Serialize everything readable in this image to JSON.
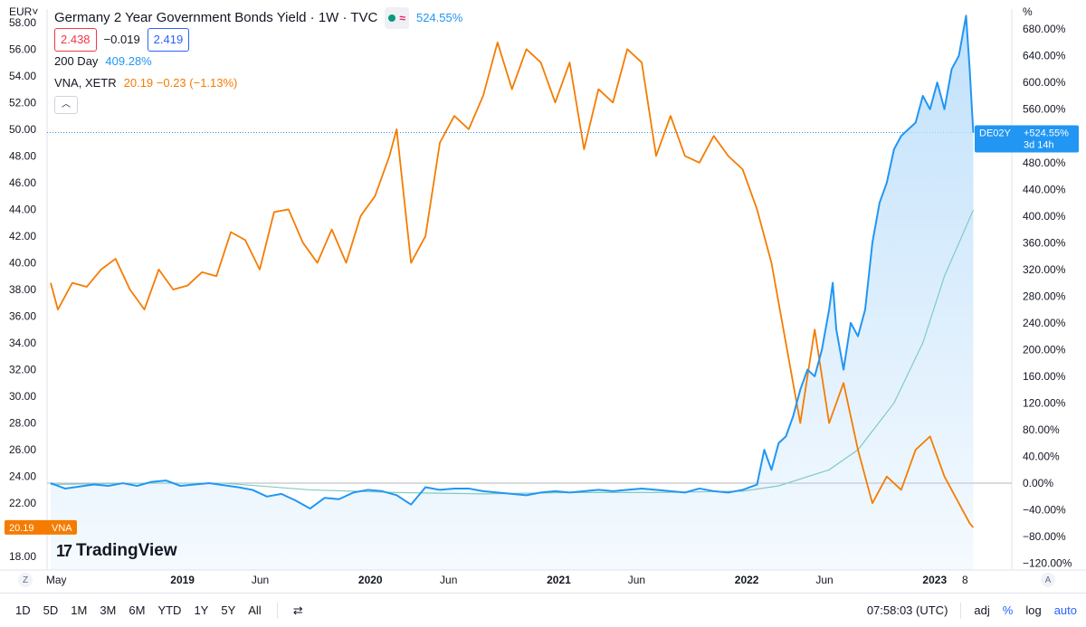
{
  "header": {
    "currency": "EUR",
    "currency_caret": "˅",
    "percent_unit": "%",
    "title": "Germany 2 Year Government Bonds Yield · 1W · TVC",
    "pill_symbol": "≈",
    "main_change": "524.55%",
    "val1": "2.438",
    "spread": "−0.019",
    "val2": "2.419",
    "ma_label": "200 Day",
    "ma_value": "409.28%",
    "cmp_name": "VNA, XETR",
    "cmp_values": "20.19  −0.23 (−1.13%)",
    "collapse_glyph": "︿"
  },
  "tags": {
    "vna_value": "20.19",
    "vna_name": "VNA",
    "de_name": "DE02Y",
    "de_change": "+524.55%",
    "de_countdown": "3d 14h"
  },
  "corners": {
    "left": "Z",
    "right": "A"
  },
  "logo": {
    "mark": "17",
    "text": "TradingView"
  },
  "bottom": {
    "ranges": [
      "1D",
      "5D",
      "1M",
      "3M",
      "6M",
      "YTD",
      "1Y",
      "5Y",
      "All"
    ],
    "compare_icon": "⇄",
    "time": "07:58:03 (UTC)",
    "adj": "adj",
    "pct": "%",
    "log": "log",
    "auto": "auto"
  },
  "colors": {
    "yield_line": "#2196f3",
    "yield_fill": "#bbdefb",
    "ma_line": "#80cbc4",
    "vna_line": "#f57c00",
    "axis_text": "#131722",
    "grid": "#f0f3fa"
  },
  "chart_data": {
    "type": "line",
    "x_ticks": [
      "May",
      "2019",
      "Jun",
      "2020",
      "Jun",
      "2021",
      "Jun",
      "2022",
      "Jun",
      "2023",
      "8"
    ],
    "x_tick_dates": [
      "2018-05-01",
      "2019-01-01",
      "2019-06-01",
      "2020-01-01",
      "2020-06-01",
      "2021-01-01",
      "2021-06-01",
      "2022-01-01",
      "2022-06-01",
      "2023-01-01",
      "2023-03-01"
    ],
    "y_left_ticks": [
      "58.00",
      "56.00",
      "54.00",
      "52.00",
      "50.00",
      "48.00",
      "46.00",
      "44.00",
      "42.00",
      "40.00",
      "38.00",
      "36.00",
      "34.00",
      "32.00",
      "30.00",
      "28.00",
      "26.00",
      "24.00",
      "22.00",
      "18.00"
    ],
    "y_left_values": [
      58,
      56,
      54,
      52,
      50,
      48,
      46,
      44,
      42,
      40,
      38,
      36,
      34,
      32,
      30,
      28,
      26,
      24,
      22,
      18
    ],
    "y_right_ticks": [
      "680.00%",
      "640.00%",
      "600.00%",
      "560.00%",
      "520.00%",
      "480.00%",
      "440.00%",
      "400.00%",
      "360.00%",
      "320.00%",
      "280.00%",
      "240.00%",
      "200.00%",
      "160.00%",
      "120.00%",
      "80.00%",
      "40.00%",
      "0.00%",
      "−40.00%",
      "−80.00%",
      "−120.00%"
    ],
    "y_right_values": [
      680,
      640,
      600,
      560,
      520,
      480,
      440,
      400,
      360,
      320,
      280,
      240,
      200,
      160,
      120,
      80,
      40,
      0,
      -40,
      -80,
      -120
    ],
    "ylim_left": [
      17,
      59
    ],
    "ylim_right": [
      -130,
      710
    ],
    "series": [
      {
        "name": "Germany 2 Year Government Bonds Yield",
        "axis": "right",
        "unit": "%",
        "x": [
          "2018-04-20",
          "2018-05-18",
          "2018-06-15",
          "2018-07-13",
          "2018-08-10",
          "2018-09-07",
          "2018-10-05",
          "2018-11-02",
          "2018-11-30",
          "2018-12-28",
          "2019-01-25",
          "2019-02-22",
          "2019-03-22",
          "2019-04-19",
          "2019-05-17",
          "2019-06-14",
          "2019-07-12",
          "2019-08-09",
          "2019-09-06",
          "2019-10-04",
          "2019-11-01",
          "2019-11-29",
          "2019-12-27",
          "2020-01-24",
          "2020-02-21",
          "2020-03-20",
          "2020-04-17",
          "2020-05-15",
          "2020-06-12",
          "2020-07-10",
          "2020-08-07",
          "2020-09-04",
          "2020-10-02",
          "2020-10-30",
          "2020-11-27",
          "2020-12-25",
          "2021-01-22",
          "2021-02-19",
          "2021-03-19",
          "2021-04-16",
          "2021-05-14",
          "2021-06-11",
          "2021-07-09",
          "2021-08-06",
          "2021-09-03",
          "2021-10-01",
          "2021-10-29",
          "2021-11-26",
          "2021-12-24",
          "2022-01-21",
          "2022-02-04",
          "2022-02-18",
          "2022-03-04",
          "2022-03-18",
          "2022-04-01",
          "2022-04-15",
          "2022-04-29",
          "2022-05-13",
          "2022-05-27",
          "2022-06-10",
          "2022-06-17",
          "2022-06-24",
          "2022-07-08",
          "2022-07-22",
          "2022-08-05",
          "2022-08-19",
          "2022-09-02",
          "2022-09-16",
          "2022-09-30",
          "2022-10-14",
          "2022-10-28",
          "2022-11-11",
          "2022-11-25",
          "2022-12-09",
          "2022-12-23",
          "2023-01-06",
          "2023-01-20",
          "2023-02-03",
          "2023-02-17",
          "2023-03-03",
          "2023-03-10",
          "2023-03-17"
        ],
        "y": [
          0,
          -8,
          -5,
          -2,
          -4,
          0,
          -4,
          2,
          4,
          -4,
          -2,
          0,
          -3,
          -6,
          -10,
          -20,
          -16,
          -26,
          -38,
          -22,
          -24,
          -14,
          -10,
          -12,
          -18,
          -32,
          -6,
          -10,
          -8,
          -8,
          -12,
          -14,
          -16,
          -18,
          -14,
          -12,
          -14,
          -12,
          -10,
          -12,
          -10,
          -8,
          -10,
          -12,
          -14,
          -8,
          -12,
          -14,
          -10,
          -2,
          50,
          20,
          60,
          70,
          100,
          140,
          170,
          160,
          200,
          260,
          300,
          230,
          170,
          240,
          220,
          260,
          360,
          420,
          450,
          500,
          520,
          530,
          540,
          580,
          560,
          600,
          560,
          620,
          640,
          700,
          620,
          525
        ]
      },
      {
        "name": "200 Day",
        "axis": "right",
        "unit": "%",
        "x": [
          "2018-04-20",
          "2018-10-05",
          "2019-03-22",
          "2019-09-06",
          "2020-02-21",
          "2020-08-07",
          "2021-01-22",
          "2021-07-09",
          "2021-12-24",
          "2022-03-04",
          "2022-06-10",
          "2022-08-05",
          "2022-10-14",
          "2022-12-09",
          "2023-01-20",
          "2023-03-17"
        ],
        "y": [
          -2,
          0,
          0,
          -10,
          -14,
          -16,
          -14,
          -14,
          -12,
          -4,
          20,
          50,
          120,
          210,
          310,
          409
        ]
      },
      {
        "name": "VNA, XETR",
        "axis": "left",
        "unit": "EUR",
        "x": [
          "2018-04-20",
          "2018-05-04",
          "2018-06-01",
          "2018-06-29",
          "2018-07-27",
          "2018-08-24",
          "2018-09-21",
          "2018-10-19",
          "2018-11-16",
          "2018-12-14",
          "2019-01-11",
          "2019-02-08",
          "2019-03-08",
          "2019-04-05",
          "2019-05-03",
          "2019-05-31",
          "2019-06-28",
          "2019-07-26",
          "2019-08-23",
          "2019-09-20",
          "2019-10-18",
          "2019-11-15",
          "2019-12-13",
          "2020-01-10",
          "2020-02-07",
          "2020-02-21",
          "2020-03-20",
          "2020-04-17",
          "2020-05-15",
          "2020-06-12",
          "2020-07-10",
          "2020-08-07",
          "2020-09-04",
          "2020-10-02",
          "2020-10-30",
          "2020-11-27",
          "2020-12-25",
          "2021-01-22",
          "2021-02-19",
          "2021-03-19",
          "2021-04-16",
          "2021-05-14",
          "2021-06-11",
          "2021-07-09",
          "2021-08-06",
          "2021-09-03",
          "2021-10-01",
          "2021-10-29",
          "2021-11-26",
          "2021-12-24",
          "2022-01-21",
          "2022-02-18",
          "2022-03-18",
          "2022-04-15",
          "2022-05-13",
          "2022-06-10",
          "2022-07-08",
          "2022-08-05",
          "2022-09-02",
          "2022-09-30",
          "2022-10-28",
          "2022-11-25",
          "2022-12-23",
          "2023-01-20",
          "2023-02-17",
          "2023-03-10",
          "2023-03-17"
        ],
        "y": [
          38.5,
          36.5,
          38.5,
          38.2,
          39.5,
          40.3,
          38,
          36.5,
          39.5,
          38,
          38.3,
          39.3,
          39,
          42.3,
          41.7,
          39.5,
          43.8,
          44,
          41.5,
          40,
          42.5,
          40,
          43.5,
          45,
          48,
          50,
          40,
          42,
          49,
          51,
          50,
          52.5,
          56.5,
          53,
          56,
          55,
          52,
          55,
          48.5,
          53,
          52,
          56,
          55,
          48,
          51,
          48,
          47.5,
          49.5,
          48,
          47,
          44,
          40,
          34,
          28,
          35,
          28,
          31,
          26,
          22,
          24,
          23,
          26,
          27,
          24,
          22,
          20.5,
          20.19
        ]
      }
    ],
    "annotations": [
      "DE02Y +524.55% 3d 14h",
      "20.19 VNA"
    ]
  }
}
